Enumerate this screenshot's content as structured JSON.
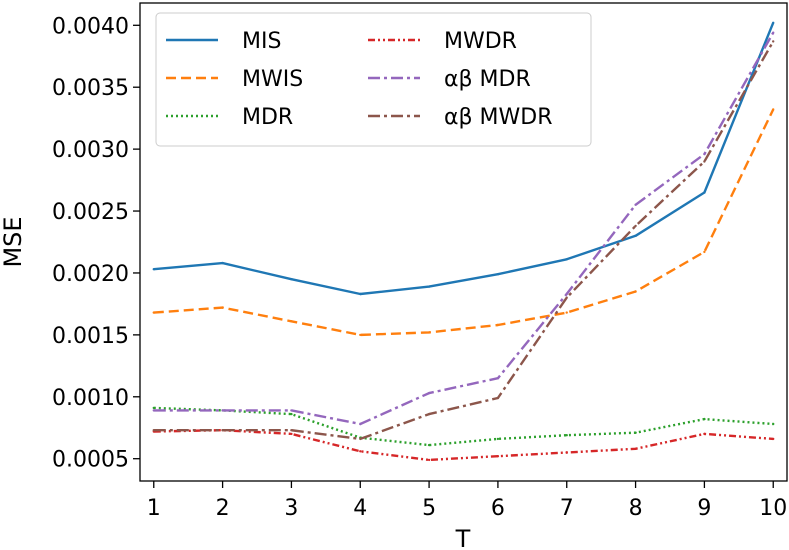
{
  "chart_data": {
    "type": "line",
    "title": "",
    "xlabel": "T",
    "ylabel": "MSE",
    "x": [
      1,
      2,
      3,
      4,
      5,
      6,
      7,
      8,
      9,
      10
    ],
    "xticks": [
      "1",
      "2",
      "3",
      "4",
      "5",
      "6",
      "7",
      "8",
      "9",
      "10"
    ],
    "yticks": [
      "0.0005",
      "0.0010",
      "0.0015",
      "0.0020",
      "0.0025",
      "0.0030",
      "0.0035",
      "0.0040"
    ],
    "ytick_values": [
      0.0005,
      0.001,
      0.0015,
      0.002,
      0.0025,
      0.003,
      0.0035,
      0.004
    ],
    "xlim": [
      0.8,
      10.2
    ],
    "ylim": [
      0.00032,
      0.00418
    ],
    "grid": false,
    "legend_position": "top-left",
    "series": [
      {
        "name": "MIS",
        "color": "#1f77b4",
        "dash": "solid",
        "values": [
          0.00203,
          0.00208,
          0.00195,
          0.00183,
          0.00189,
          0.00199,
          0.00211,
          0.0023,
          0.00265,
          0.00402
        ]
      },
      {
        "name": "MWIS",
        "color": "#ff7f0e",
        "dash": "dashed",
        "values": [
          0.00168,
          0.00172,
          0.00161,
          0.0015,
          0.00152,
          0.00158,
          0.00168,
          0.00185,
          0.00217,
          0.00332
        ]
      },
      {
        "name": "MDR",
        "color": "#2ca02c",
        "dash": "dotted",
        "values": [
          0.00091,
          0.00089,
          0.00086,
          0.00067,
          0.00061,
          0.00066,
          0.00069,
          0.00071,
          0.00082,
          0.00078
        ]
      },
      {
        "name": "MWDR",
        "color": "#d62728",
        "dash": "dashdotdot",
        "values": [
          0.00072,
          0.00073,
          0.0007,
          0.00056,
          0.00049,
          0.00052,
          0.00055,
          0.00058,
          0.0007,
          0.00066
        ]
      },
      {
        "name": "αβ MDR",
        "color": "#9467bd",
        "dash": "dashdot",
        "values": [
          0.00089,
          0.00089,
          0.00089,
          0.00078,
          0.00103,
          0.00115,
          0.00183,
          0.00255,
          0.00296,
          0.00394
        ]
      },
      {
        "name": "αβ MWDR",
        "color": "#8c564b",
        "dash": "dashdot",
        "values": [
          0.00073,
          0.00073,
          0.00073,
          0.00066,
          0.00086,
          0.00099,
          0.0018,
          0.00238,
          0.0029,
          0.00387
        ]
      }
    ]
  }
}
